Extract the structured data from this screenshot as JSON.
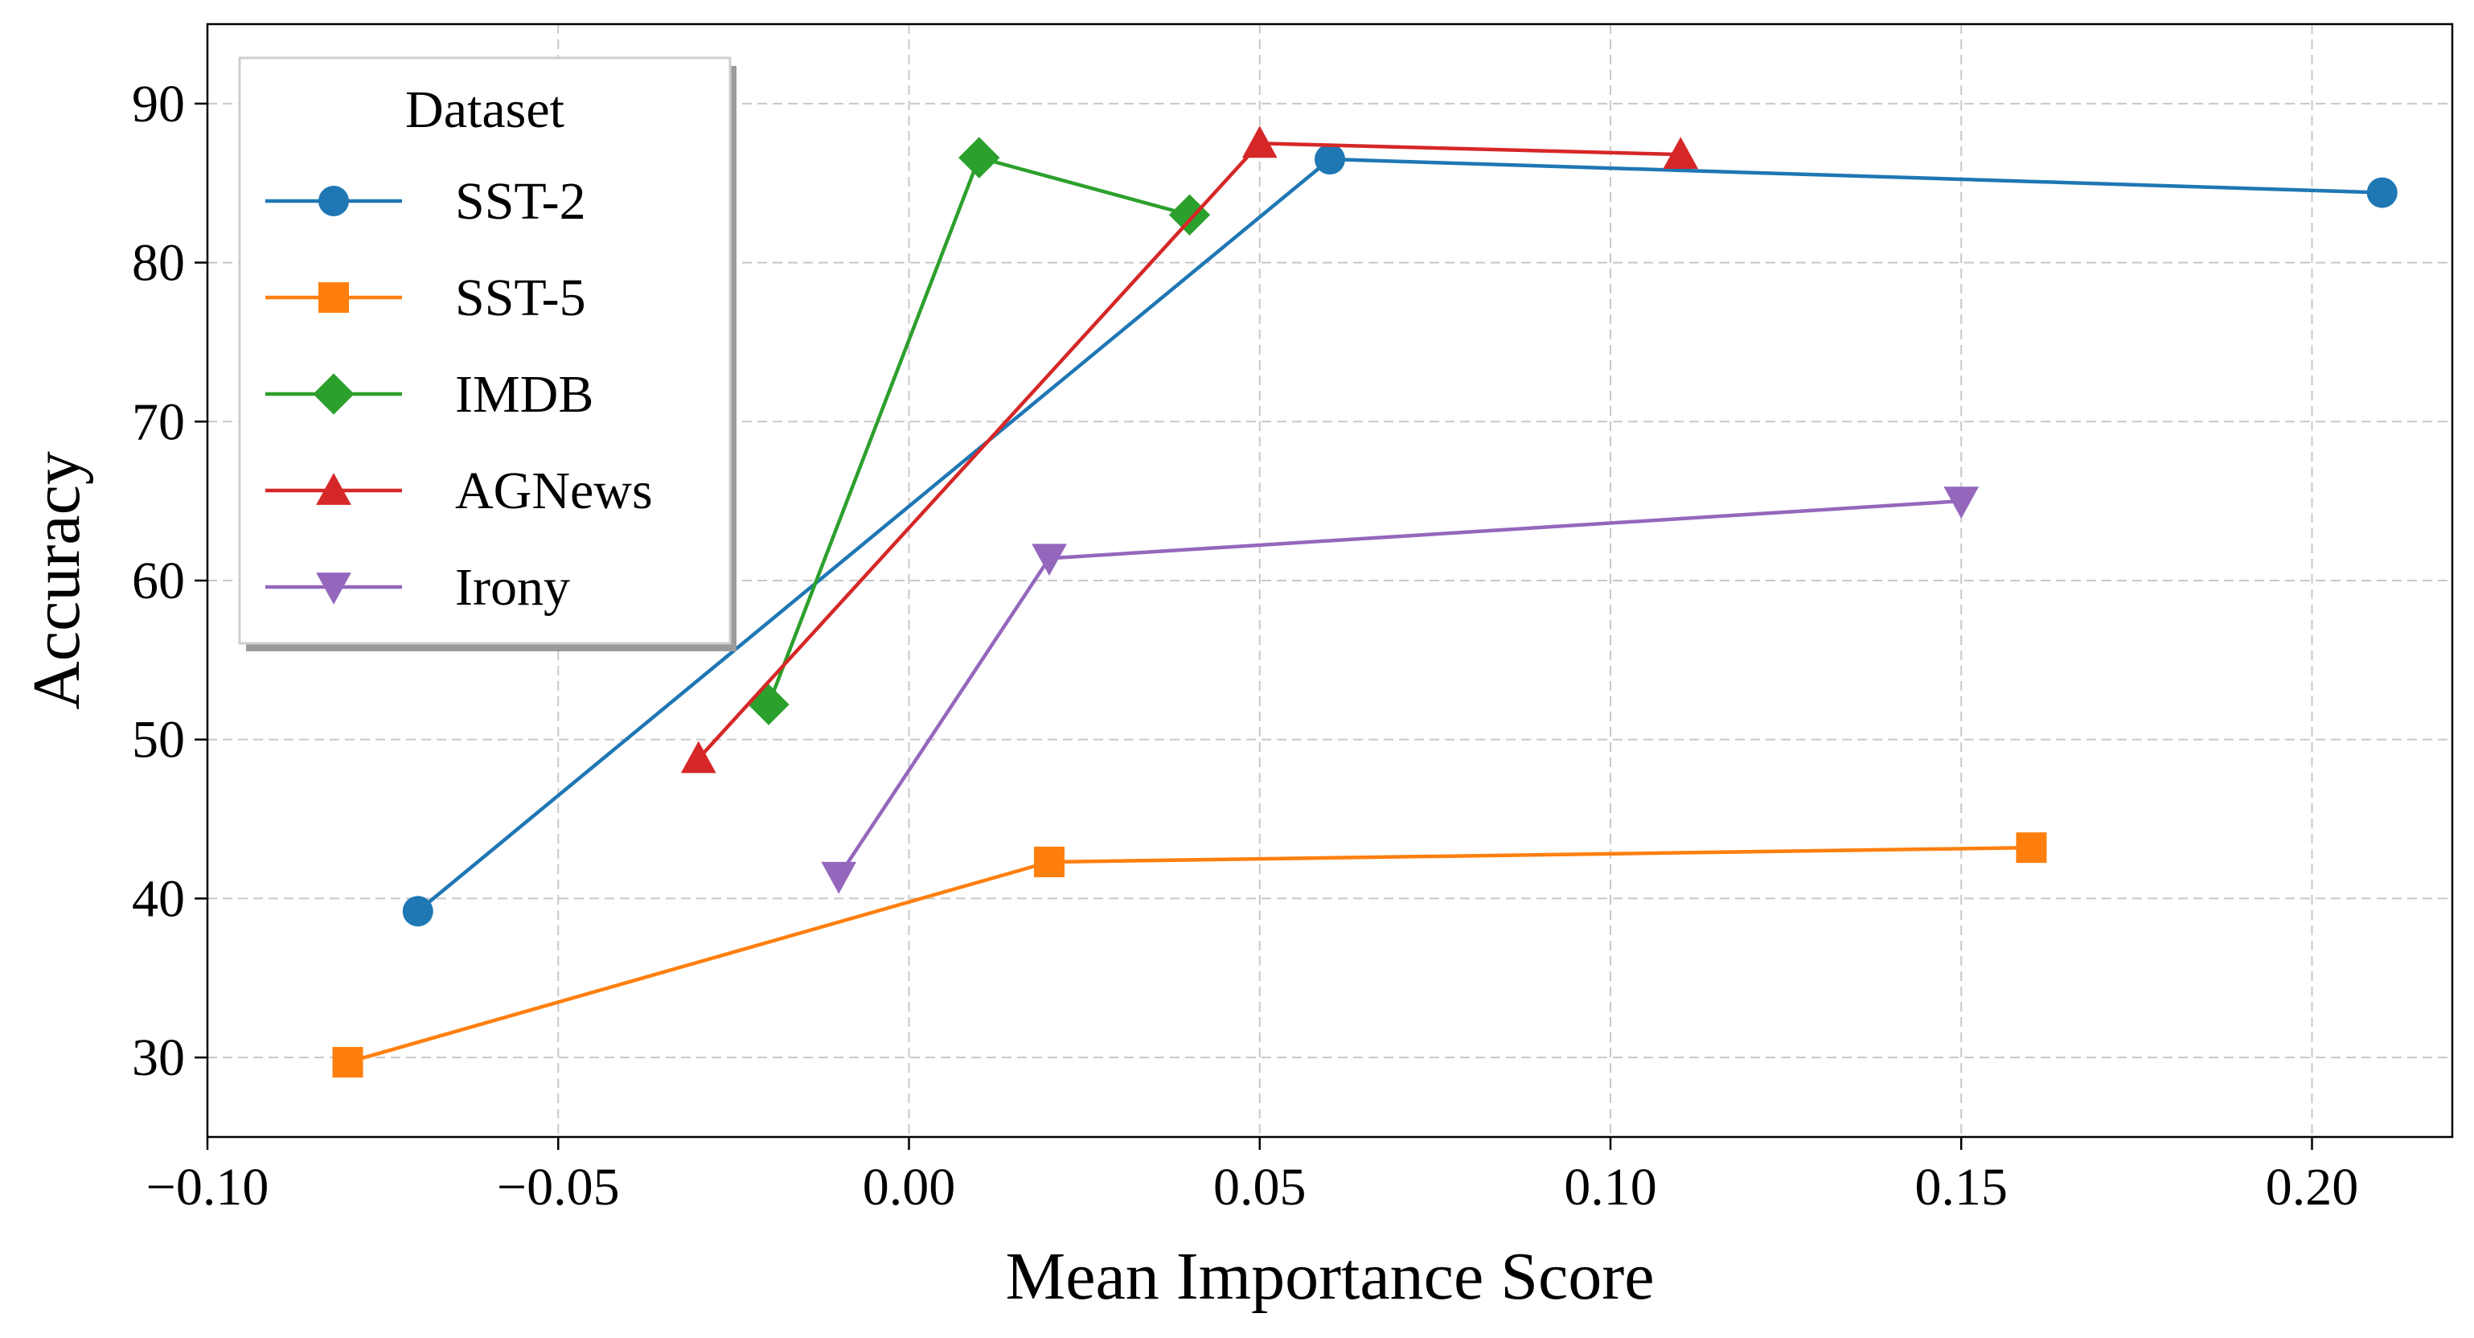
{
  "chart_data": {
    "type": "line",
    "title": "",
    "xlabel": "Mean Importance Score",
    "ylabel": "Accuracy",
    "xlim": [
      -0.1,
      0.22
    ],
    "ylim": [
      25,
      95
    ],
    "xticks": [
      -0.1,
      -0.05,
      0.0,
      0.05,
      0.1,
      0.15,
      0.2
    ],
    "xtick_labels": [
      "−0.10",
      "−0.05",
      "0.00",
      "0.05",
      "0.10",
      "0.15",
      "0.20"
    ],
    "yticks": [
      30,
      40,
      50,
      60,
      70,
      80,
      90
    ],
    "ytick_labels": [
      "30",
      "40",
      "50",
      "60",
      "70",
      "80",
      "90"
    ],
    "grid": true,
    "legend": {
      "title": "Dataset",
      "placement": "top-left"
    },
    "series": [
      {
        "name": "SST-2",
        "color": "#1f77b4",
        "marker": "circle",
        "points": [
          [
            -0.07,
            39.2
          ],
          [
            0.06,
            86.5
          ],
          [
            0.21,
            84.4
          ]
        ]
      },
      {
        "name": "SST-5",
        "color": "#ff7f0e",
        "marker": "square",
        "points": [
          [
            -0.08,
            29.7
          ],
          [
            0.02,
            42.3
          ],
          [
            0.16,
            43.2
          ]
        ]
      },
      {
        "name": "IMDB",
        "color": "#2ca02c",
        "marker": "diamond",
        "points": [
          [
            -0.02,
            52.2
          ],
          [
            0.01,
            86.6
          ],
          [
            0.04,
            83.0
          ]
        ]
      },
      {
        "name": "AGNews",
        "color": "#d62728",
        "marker": "triangle-up",
        "points": [
          [
            -0.03,
            48.8
          ],
          [
            0.05,
            87.5
          ],
          [
            0.11,
            86.8
          ]
        ]
      },
      {
        "name": "Irony",
        "color": "#9467bd",
        "marker": "triangle-down",
        "points": [
          [
            -0.01,
            41.4
          ],
          [
            0.02,
            61.4
          ],
          [
            0.15,
            65.0
          ]
        ]
      }
    ]
  }
}
